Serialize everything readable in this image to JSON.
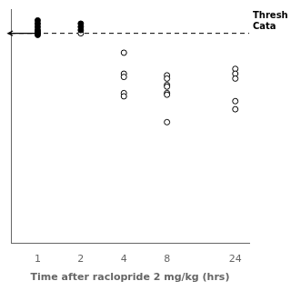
{
  "chart_data": {
    "type": "scatter",
    "xlabel": "Time after raclopride 2 mg/kg (hrs)",
    "log": "x",
    "xlim": [
      0.65,
      30
    ],
    "xticks": [
      1,
      2,
      4,
      8,
      24
    ],
    "ylim": [
      -30,
      115
    ],
    "tick_labels": "x",
    "grid": false,
    "series": [
      {
        "color": "#000000",
        "marker": "circle",
        "x": [
          1,
          1,
          1,
          1,
          1,
          1,
          1
        ],
        "values": [
          108,
          106,
          104,
          102,
          101,
          100,
          99
        ]
      },
      {
        "color": "#000000",
        "marker": "circle",
        "x": [
          2,
          2,
          2
        ],
        "values": [
          106,
          104,
          102
        ]
      },
      {
        "color": "#000000",
        "marker": "open_circle",
        "x": [
          2
        ],
        "values": [
          100
        ]
      },
      {
        "color": "#000000",
        "marker": "open_circle",
        "x": [
          4,
          4,
          4,
          4,
          4,
          8,
          8,
          8,
          8,
          8,
          8,
          8,
          24,
          24,
          24,
          24,
          24
        ],
        "values": [
          88,
          75,
          73,
          63,
          61,
          74,
          72,
          68,
          67,
          63,
          62,
          45,
          78,
          75,
          72,
          58,
          53
        ]
      }
    ],
    "annotations": [
      {
        "type": "hline",
        "y": 100,
        "line_style": "dashed",
        "color": "#000000",
        "text": "Thresh\nCata"
      },
      {
        "type": "arrow",
        "x": [
          1.05,
          0.62
        ],
        "y": [
          100,
          100
        ],
        "color": "#000000"
      }
    ]
  }
}
